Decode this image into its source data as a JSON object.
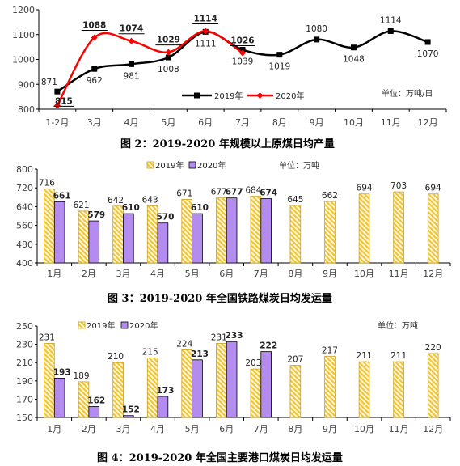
{
  "colors": {
    "s2019": "#000000",
    "s2020": "#ff0000",
    "bar2019": "#f2c230",
    "bar2020": "#b48cf0"
  },
  "charts": [
    {
      "title": "图 2：2019-2020 年规模以上原煤日均产量",
      "unit": "单位：万吨/日",
      "legend": [
        "2019年",
        "2020年"
      ],
      "chart_data": {
        "type": "line",
        "categories": [
          "1-2月",
          "3月",
          "4月",
          "5月",
          "6月",
          "7月",
          "8月",
          "9月",
          "10月",
          "11月",
          "12月"
        ],
        "ylim": [
          800,
          1200
        ],
        "yticks": [
          800,
          900,
          1000,
          1100,
          1200
        ],
        "series": [
          {
            "name": "2019年",
            "values": [
              871,
              962,
              981,
              1008,
              1111,
              1039,
              1019,
              1080,
              1048,
              1114,
              1070
            ]
          },
          {
            "name": "2020年",
            "values": [
              815,
              1088,
              1074,
              1029,
              1114,
              1026,
              null,
              null,
              null,
              null,
              null
            ]
          }
        ]
      }
    },
    {
      "title": "图 3：2019-2020 年全国铁路煤炭日均发运量",
      "unit": "单位：万吨",
      "legend": [
        "2019年",
        "2020年"
      ],
      "chart_data": {
        "type": "bar",
        "categories": [
          "1月",
          "2月",
          "3月",
          "4月",
          "5月",
          "6月",
          "7月",
          "8月",
          "9月",
          "10月",
          "11月",
          "12月"
        ],
        "ylim": [
          400,
          800
        ],
        "yticks": [
          400,
          480,
          560,
          640,
          720,
          800
        ],
        "series": [
          {
            "name": "2019年",
            "values": [
              716,
              621,
              642,
              643,
              671,
              677,
              684,
              645,
              662,
              694,
              703,
              694
            ]
          },
          {
            "name": "2020年",
            "values": [
              661,
              579,
              610,
              570,
              610,
              677,
              674,
              null,
              null,
              null,
              null,
              null
            ]
          }
        ]
      }
    },
    {
      "title": "图 4：2019-2020 年全国主要港口煤炭日均发运量",
      "unit": "单位：万吨",
      "legend": [
        "2019年",
        "2020年"
      ],
      "chart_data": {
        "type": "bar",
        "categories": [
          "1月",
          "2月",
          "3月",
          "4月",
          "5月",
          "6月",
          "7月",
          "8月",
          "9月",
          "10月",
          "11月",
          "12月"
        ],
        "ylim": [
          150,
          250
        ],
        "yticks": [
          150,
          170,
          190,
          210,
          230,
          250
        ],
        "series": [
          {
            "name": "2019年",
            "values": [
              231,
              189,
              210,
              215,
              224,
              231,
              203,
              207,
              217,
              211,
              211,
              220
            ]
          },
          {
            "name": "2020年",
            "values": [
              193,
              162,
              152,
              173,
              213,
              233,
              222,
              null,
              null,
              null,
              null,
              null
            ]
          }
        ]
      }
    }
  ]
}
